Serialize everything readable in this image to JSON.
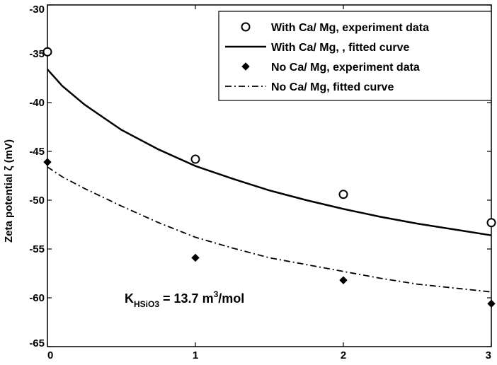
{
  "chart_data": {
    "type": "line",
    "title": "",
    "xlabel": "",
    "ylabel": "Zeta potential ζ (mV)",
    "xlim": [
      0,
      3
    ],
    "ylim": [
      -65,
      -30
    ],
    "x_ticks": [
      "0",
      "1",
      "2",
      "3"
    ],
    "y_ticks": [
      "-30",
      "-35",
      "-40",
      "-45",
      "-50",
      "-55",
      "-60",
      "-65"
    ],
    "grid": false,
    "legend_position": "top-right",
    "series": [
      {
        "name": "With Ca/ Mg, experiment data",
        "kind": "scatter",
        "marker": "circle",
        "x": [
          0,
          1,
          2,
          3
        ],
        "y": [
          -34.8,
          -45.8,
          -49.4,
          -52.3
        ]
      },
      {
        "name": "With Ca/ Mg, , fitted curve",
        "kind": "line",
        "style": "solid",
        "x": [
          0,
          0.1,
          0.25,
          0.5,
          0.75,
          1,
          1.25,
          1.5,
          1.75,
          2,
          2.25,
          2.5,
          2.75,
          3
        ],
        "y": [
          -36.6,
          -38.3,
          -40.2,
          -42.8,
          -44.8,
          -46.5,
          -47.8,
          -49.0,
          -50.0,
          -50.9,
          -51.7,
          -52.4,
          -53.0,
          -53.6
        ]
      },
      {
        "name": "No Ca/ Mg, experiment data",
        "kind": "scatter",
        "marker": "diamond",
        "x": [
          0,
          1,
          2,
          3
        ],
        "y": [
          -46.1,
          -55.9,
          -58.2,
          -60.6
        ]
      },
      {
        "name": "No Ca/ Mg, fitted curve",
        "kind": "line",
        "style": "dashdot",
        "x": [
          0,
          0.1,
          0.25,
          0.5,
          0.75,
          1,
          1.25,
          1.5,
          1.75,
          2,
          2.25,
          2.5,
          2.75,
          3
        ],
        "y": [
          -46.6,
          -47.6,
          -48.8,
          -50.6,
          -52.3,
          -53.8,
          -54.9,
          -55.9,
          -56.6,
          -57.3,
          -58.0,
          -58.6,
          -59.0,
          -59.4
        ]
      }
    ],
    "annotation": {
      "k": "K",
      "k_sub": "HSiO3",
      "equals": " = 13.7 m",
      "sup": "3",
      "unit": "/mol"
    }
  }
}
